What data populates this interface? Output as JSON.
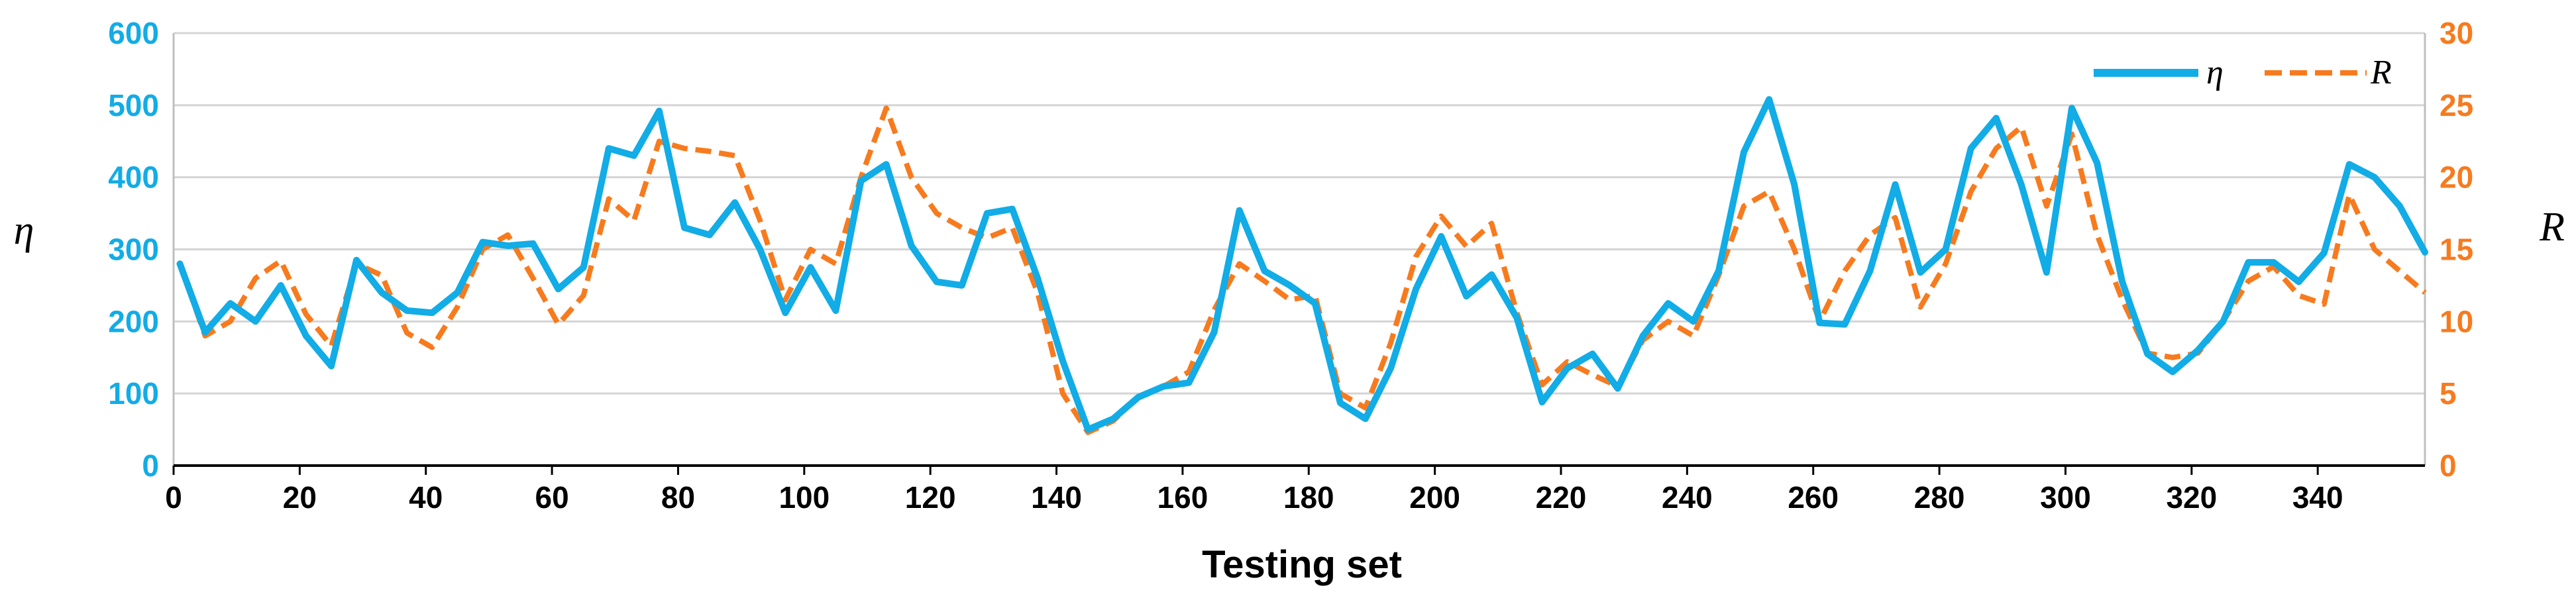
{
  "chart_data": {
    "type": "line",
    "xlabel": "Testing set",
    "ylabel_left": "η",
    "ylabel_right": "R",
    "xlim": [
      0,
      357
    ],
    "xticks": [
      "0",
      "20",
      "40",
      "60",
      "80",
      "100",
      "120",
      "140",
      "160",
      "180",
      "200",
      "220",
      "240",
      "260",
      "280",
      "300",
      "320",
      "340"
    ],
    "ylim_left": [
      0,
      600
    ],
    "yticks_left": [
      "0",
      "100",
      "200",
      "300",
      "400",
      "500",
      "600"
    ],
    "ylim_right": [
      0,
      30
    ],
    "yticks_right": [
      "0",
      "5",
      "10",
      "15",
      "20",
      "25",
      "30"
    ],
    "grid": true,
    "legend_position": "top-right",
    "colors": {
      "eta": "#12ace6",
      "R": "#f77b1e"
    },
    "x": [
      1,
      5,
      9,
      13,
      17,
      21,
      25,
      29,
      33,
      37,
      41,
      45,
      49,
      53,
      57,
      61,
      65,
      69,
      73,
      77,
      81,
      85,
      89,
      93,
      97,
      101,
      105,
      109,
      113,
      117,
      121,
      125,
      129,
      133,
      137,
      141,
      145,
      149,
      153,
      157,
      161,
      165,
      169,
      173,
      177,
      181,
      185,
      189,
      193,
      197,
      201,
      205,
      209,
      213,
      217,
      221,
      225,
      229,
      233,
      237,
      241,
      245,
      249,
      253,
      257,
      261,
      265,
      269,
      273,
      277,
      281,
      285,
      289,
      293,
      297,
      301,
      305,
      309,
      313,
      317,
      321,
      325,
      329,
      333,
      337,
      341,
      345,
      349,
      353,
      357
    ],
    "series": [
      {
        "name": "η",
        "axis": "left",
        "style": "solid",
        "values": [
          280,
          185,
          225,
          200,
          250,
          180,
          138,
          285,
          240,
          215,
          212,
          240,
          310,
          305,
          308,
          245,
          275,
          440,
          430,
          492,
          330,
          320,
          365,
          300,
          212,
          275,
          215,
          395,
          418,
          305,
          255,
          250,
          350,
          356,
          260,
          145,
          50,
          65,
          95,
          110,
          115,
          185,
          354,
          270,
          250,
          225,
          87,
          65,
          135,
          245,
          318,
          235,
          265,
          205,
          88,
          135,
          155,
          107,
          180,
          225,
          200,
          270,
          435,
          508,
          390,
          198,
          196,
          270,
          390,
          268,
          300,
          440,
          482,
          390,
          268,
          496,
          420,
          255,
          155,
          130,
          160,
          200,
          282,
          282,
          255,
          295,
          418,
          400,
          360,
          296
        ]
      },
      {
        "name": "R",
        "axis": "right",
        "style": "dashed",
        "values": [
          14,
          9,
          10,
          13,
          14.2,
          10.5,
          8.3,
          14,
          13.2,
          9.2,
          8.2,
          11,
          15,
          16,
          13,
          9.8,
          11.8,
          18.5,
          17,
          22.5,
          22,
          21.8,
          21.5,
          17,
          11.5,
          15,
          14,
          20,
          24.8,
          20,
          17.5,
          16.5,
          15.8,
          16.5,
          12,
          5,
          2.3,
          3.1,
          4.8,
          5.5,
          6.5,
          10.8,
          14,
          12.8,
          11.5,
          11.8,
          5,
          4,
          8.5,
          14.5,
          17.3,
          15.2,
          16.8,
          10.6,
          5.6,
          7.2,
          6.3,
          5.5,
          8.7,
          10,
          9,
          13.2,
          18,
          19,
          15,
          10,
          13.5,
          16,
          17.2,
          11,
          14,
          19,
          22,
          23.5,
          18,
          23,
          16,
          11.5,
          7.8,
          7.5,
          7.8,
          10,
          12.8,
          13.8,
          11.8,
          11.2,
          18.8,
          15,
          13.5,
          12
        ]
      }
    ]
  }
}
